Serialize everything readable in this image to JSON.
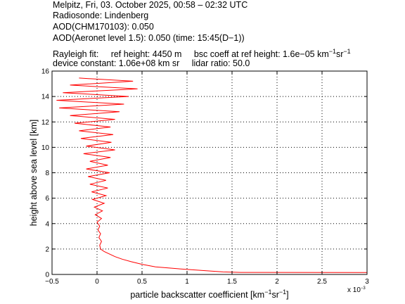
{
  "header": {
    "line1": "Melpitz, Fri, 03. October 2025, 00:58 – 02:32 UTC",
    "line2": "Radiosonde: Lindenberg",
    "line3": "AOD(CHM170103): 0.050",
    "line4": "AOD(Aeronet level 1.5): 0.050   (time: 15:45(D−1))",
    "line5_a": "Rayleigh fit:",
    "line5_b": "ref height: 4450 m",
    "line5_c": "bsc coeff at ref height: 1.6e−05 km",
    "line5_sup1": "−1",
    "line5_mid": "sr",
    "line5_sup2": "−1",
    "line6_a": "device constant: 1.06e+08 km sr",
    "line6_b": "lidar ratio: 50.0"
  },
  "chart_data": {
    "type": "line",
    "xlabel_main": "particle backscatter coefficient [km",
    "xlabel_sup1": "−1",
    "xlabel_mid": "sr",
    "xlabel_sup2": "−1",
    "xlabel_end": "]",
    "ylabel": "height above sea level [km]",
    "x_exponent_label": "x 10",
    "x_exponent_sup": "−3",
    "xlim": [
      -0.5,
      3
    ],
    "ylim": [
      0,
      16
    ],
    "xticks": [
      -0.5,
      0,
      0.5,
      1,
      1.5,
      2,
      2.5,
      3
    ],
    "xtick_labels": [
      "−0.5",
      "0",
      "0.5",
      "1",
      "1.5",
      "2",
      "2.5",
      "3"
    ],
    "yticks": [
      0,
      2,
      4,
      6,
      8,
      10,
      12,
      14,
      16
    ],
    "ytick_labels": [
      "0",
      "2",
      "4",
      "6",
      "8",
      "10",
      "12",
      "14",
      "16"
    ],
    "grid": true,
    "series": [
      {
        "color": "#ff0000",
        "points": [
          [
            3.0,
            0.15
          ],
          [
            1.6,
            0.16
          ],
          [
            1.4,
            0.2
          ],
          [
            1.2,
            0.3
          ],
          [
            0.9,
            0.45
          ],
          [
            0.65,
            0.6
          ],
          [
            0.5,
            0.8
          ],
          [
            0.38,
            1.0
          ],
          [
            0.28,
            1.2
          ],
          [
            0.2,
            1.4
          ],
          [
            0.14,
            1.6
          ],
          [
            0.08,
            1.8
          ],
          [
            0.04,
            2.0
          ],
          [
            0.03,
            2.3
          ],
          [
            0.05,
            2.6
          ],
          [
            0.02,
            2.9
          ],
          [
            0.04,
            3.2
          ],
          [
            0.01,
            3.5
          ],
          [
            0.03,
            3.8
          ],
          [
            0.0,
            4.1
          ],
          [
            0.05,
            4.4
          ],
          [
            -0.02,
            4.7
          ],
          [
            0.06,
            5.0
          ],
          [
            -0.03,
            5.3
          ],
          [
            0.08,
            5.6
          ],
          [
            -0.05,
            5.9
          ],
          [
            0.1,
            6.2
          ],
          [
            -0.06,
            6.5
          ],
          [
            0.12,
            6.8
          ],
          [
            -0.08,
            7.1
          ],
          [
            0.1,
            7.4
          ],
          [
            -0.1,
            7.7
          ],
          [
            0.14,
            8.0
          ],
          [
            -0.12,
            8.3
          ],
          [
            0.12,
            8.6
          ],
          [
            -0.08,
            8.9
          ],
          [
            0.15,
            9.2
          ],
          [
            -0.15,
            9.5
          ],
          [
            0.2,
            9.8
          ],
          [
            -0.12,
            10.1
          ],
          [
            0.16,
            10.4
          ],
          [
            -0.18,
            10.7
          ],
          [
            0.18,
            11.0
          ],
          [
            -0.2,
            11.3
          ],
          [
            0.15,
            11.6
          ],
          [
            -0.25,
            11.9
          ],
          [
            0.2,
            12.2
          ],
          [
            -0.3,
            12.5
          ],
          [
            0.25,
            12.8
          ],
          [
            -0.42,
            13.1
          ],
          [
            0.3,
            13.4
          ],
          [
            -0.45,
            13.7
          ],
          [
            0.35,
            14.0
          ],
          [
            -0.38,
            14.3
          ],
          [
            0.45,
            14.6
          ],
          [
            -0.3,
            14.9
          ],
          [
            0.4,
            15.2
          ],
          [
            -0.2,
            15.45
          ]
        ]
      }
    ]
  }
}
